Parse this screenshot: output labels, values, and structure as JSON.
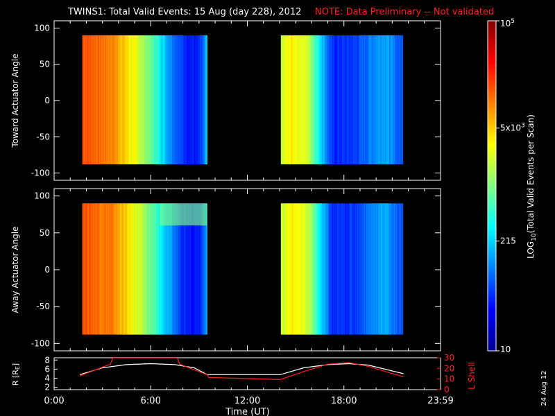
{
  "title": "TWINS1: Total Valid Events: 15 Aug (day 228), 2012",
  "note": "NOTE: Data Preliminary -- Not validated",
  "colors": {
    "note": "#ff2020",
    "frame": "#ffffff",
    "r_line": "#ffffff",
    "lshell_line": "#ff2020"
  },
  "chart_data": [
    {
      "type": "heatmap",
      "name": "toward",
      "ylabel": "Toward Actuator Angle",
      "ylim": [
        -110,
        110
      ],
      "yticks": [
        "100",
        "50",
        "0",
        "-50",
        "-100"
      ],
      "xlim_hours": [
        0,
        24
      ],
      "segments": [
        {
          "start": "1:45",
          "end": "9:30",
          "angle_range": [
            -88,
            90
          ],
          "start_hour": 1.75,
          "end_hour": 9.5
        },
        {
          "start": "14:05",
          "end": "21:40",
          "angle_range": [
            -88,
            90
          ],
          "start_hour": 14.08,
          "end_hour": 21.67
        }
      ]
    },
    {
      "type": "heatmap",
      "name": "away",
      "ylabel": "Away Actuator Angle",
      "ylim": [
        -110,
        110
      ],
      "yticks": [
        "100",
        "50",
        "0",
        "-50",
        "-100"
      ],
      "xlim_hours": [
        0,
        24
      ],
      "segments": [
        {
          "start": "1:45",
          "end": "9:30",
          "angle_range": [
            -88,
            90
          ],
          "start_hour": 1.75,
          "end_hour": 9.5
        },
        {
          "start": "14:05",
          "end": "21:40",
          "angle_range": [
            -88,
            90
          ],
          "start_hour": 14.08,
          "end_hour": 21.67
        }
      ]
    },
    {
      "type": "line",
      "name": "orbit",
      "xlabel": "Time (UT)",
      "xticks": [
        "0:00",
        "6:00",
        "12:00",
        "18:00",
        "23:59"
      ],
      "left_axis": {
        "label": "R [R",
        "label_sub": "E",
        "label_end": "]",
        "ylim": [
          1.5,
          8.5
        ],
        "ticks": [
          "8",
          "6",
          "4",
          "2"
        ]
      },
      "right_axis": {
        "label": "L Shell",
        "ylim": [
          0,
          30
        ],
        "ticks": [
          "30",
          "20",
          "10",
          "0"
        ]
      },
      "series": [
        {
          "axis": "left",
          "hours": [
            1.6,
            3,
            4.5,
            6,
            7.5,
            8.7,
            9.5,
            14.05,
            15.5,
            17,
            18.3,
            19.5,
            21.7
          ],
          "values": [
            4.8,
            6.3,
            7.0,
            7.2,
            7.0,
            6.3,
            4.8,
            4.8,
            6.3,
            7.0,
            7.2,
            6.9,
            5.0
          ]
        },
        {
          "axis": "right",
          "hours": [
            1.6,
            3.5,
            3.65,
            7.65,
            7.8,
            9.5,
            9.6,
            14.05,
            15.5,
            17,
            18.3,
            19.5,
            21.7
          ],
          "values": [
            13,
            24,
            30,
            30,
            24,
            14,
            11.5,
            9.5,
            17,
            24,
            25.5,
            22,
            12
          ]
        }
      ]
    }
  ],
  "colorbar": {
    "label_prefix": "LOG",
    "label_sub": "10",
    "label_rest": "(Total Valid Events per Scan)",
    "ticks": [
      {
        "base": "10",
        "exp": "5",
        "log_value": 5
      },
      {
        "base": "5x10",
        "exp": "3",
        "log_value": 3.7
      },
      {
        "base": "215",
        "exp": "",
        "log_value": 2.33
      },
      {
        "base": "10",
        "exp": "",
        "log_value": 1
      }
    ],
    "range_log": [
      1,
      5
    ]
  },
  "date_stamp": "24 Aug 12"
}
